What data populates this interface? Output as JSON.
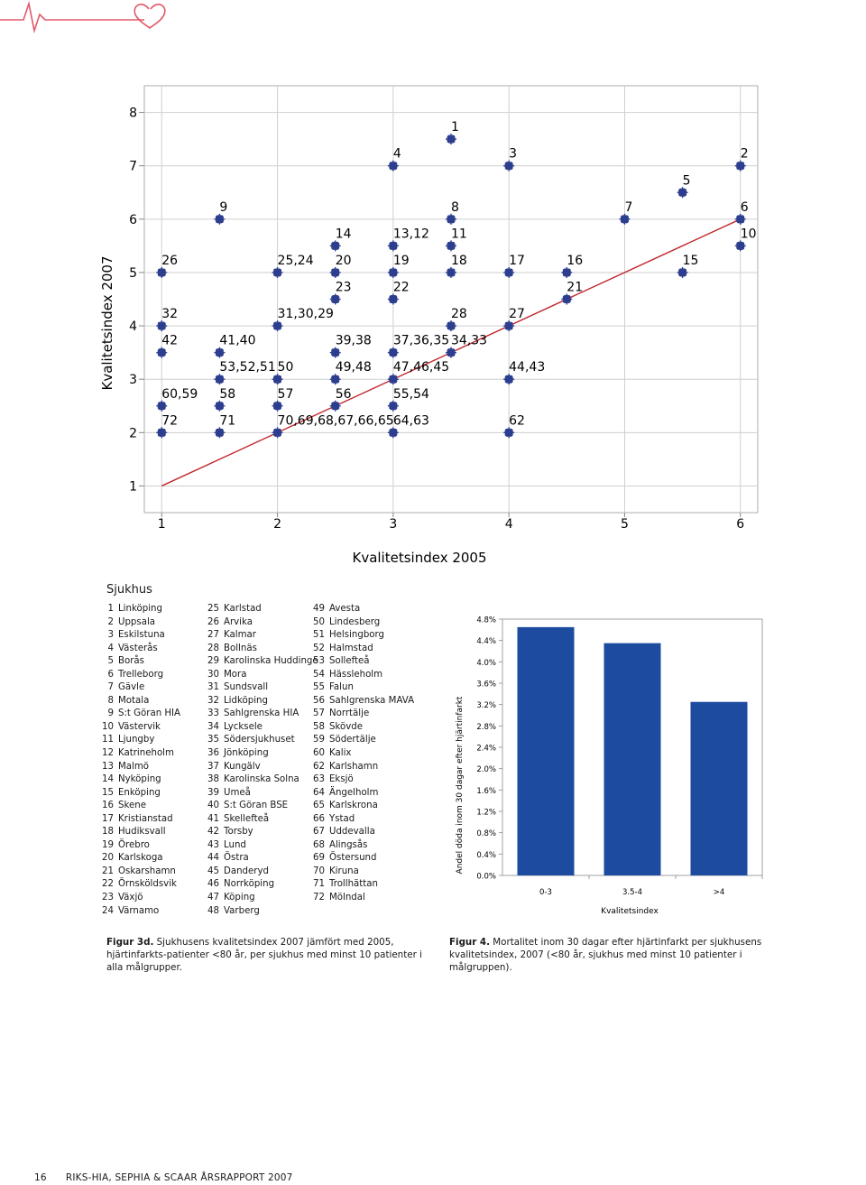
{
  "colors": {
    "accent": "#e05a6a",
    "marker": "#2d3e8f",
    "line": "#c0282d",
    "bar": "#1c4ba0",
    "grid": "#cfcfcf"
  },
  "header_icons": [
    "heartbeat-line-icon",
    "heart-outline-icon"
  ],
  "chart_data": [
    {
      "type": "scatter",
      "xlabel": "Kvalitetsindex 2005",
      "ylabel": "Kvalitetsindex 2007",
      "xlim": [
        1,
        6
      ],
      "ylim": [
        1,
        8
      ],
      "xticks": [
        "1",
        "2",
        "3",
        "4",
        "5",
        "6"
      ],
      "yticks": [
        "1",
        "2",
        "3",
        "4",
        "5",
        "6",
        "7",
        "8"
      ],
      "grid": true,
      "reference_line": {
        "from": [
          1,
          1
        ],
        "to": [
          6,
          6
        ]
      },
      "points": [
        {
          "x": 1.0,
          "y": 5.0,
          "label": "26"
        },
        {
          "x": 1.0,
          "y": 4.0,
          "label": "32"
        },
        {
          "x": 1.0,
          "y": 3.5,
          "label": "42"
        },
        {
          "x": 1.0,
          "y": 2.5,
          "label": "60,59"
        },
        {
          "x": 1.0,
          "y": 2.0,
          "label": "72"
        },
        {
          "x": 1.5,
          "y": 6.0,
          "label": "9"
        },
        {
          "x": 1.5,
          "y": 3.5,
          "label": "41,40"
        },
        {
          "x": 1.5,
          "y": 3.0,
          "label": "53,52,51"
        },
        {
          "x": 1.5,
          "y": 2.5,
          "label": "58"
        },
        {
          "x": 1.5,
          "y": 2.0,
          "label": "71"
        },
        {
          "x": 2.0,
          "y": 5.0,
          "label": "25,24"
        },
        {
          "x": 2.0,
          "y": 4.0,
          "label": "31,30,29"
        },
        {
          "x": 2.0,
          "y": 3.0,
          "label": "50"
        },
        {
          "x": 2.0,
          "y": 2.5,
          "label": "57"
        },
        {
          "x": 2.0,
          "y": 2.0,
          "label": "70,69,68,67,66,65"
        },
        {
          "x": 2.5,
          "y": 5.5,
          "label": "14"
        },
        {
          "x": 2.5,
          "y": 5.0,
          "label": "20"
        },
        {
          "x": 2.5,
          "y": 4.5,
          "label": "23"
        },
        {
          "x": 2.5,
          "y": 3.5,
          "label": "39,38"
        },
        {
          "x": 2.5,
          "y": 3.0,
          "label": "49,48"
        },
        {
          "x": 2.5,
          "y": 2.5,
          "label": "56"
        },
        {
          "x": 3.0,
          "y": 7.0,
          "label": "4"
        },
        {
          "x": 3.0,
          "y": 5.5,
          "label": "13,12"
        },
        {
          "x": 3.0,
          "y": 5.0,
          "label": "19"
        },
        {
          "x": 3.0,
          "y": 4.5,
          "label": "22"
        },
        {
          "x": 3.0,
          "y": 3.5,
          "label": "37,36,35"
        },
        {
          "x": 3.0,
          "y": 3.0,
          "label": "47,46,45"
        },
        {
          "x": 3.0,
          "y": 2.5,
          "label": "55,54"
        },
        {
          "x": 3.0,
          "y": 2.0,
          "label": "64,63"
        },
        {
          "x": 3.5,
          "y": 7.5,
          "label": "1"
        },
        {
          "x": 3.5,
          "y": 6.0,
          "label": "8"
        },
        {
          "x": 3.5,
          "y": 5.5,
          "label": "11"
        },
        {
          "x": 3.5,
          "y": 5.0,
          "label": "18"
        },
        {
          "x": 3.5,
          "y": 4.0,
          "label": "28"
        },
        {
          "x": 3.5,
          "y": 3.5,
          "label": "34,33"
        },
        {
          "x": 4.0,
          "y": 7.0,
          "label": "3"
        },
        {
          "x": 4.0,
          "y": 5.0,
          "label": "17"
        },
        {
          "x": 4.0,
          "y": 4.0,
          "label": "27"
        },
        {
          "x": 4.0,
          "y": 3.0,
          "label": "44,43"
        },
        {
          "x": 4.0,
          "y": 2.0,
          "label": "62"
        },
        {
          "x": 4.5,
          "y": 5.0,
          "label": "16"
        },
        {
          "x": 4.5,
          "y": 4.5,
          "label": "21"
        },
        {
          "x": 5.0,
          "y": 6.0,
          "label": "7"
        },
        {
          "x": 5.5,
          "y": 6.5,
          "label": "5"
        },
        {
          "x": 5.5,
          "y": 5.0,
          "label": "15"
        },
        {
          "x": 6.0,
          "y": 7.0,
          "label": "2"
        },
        {
          "x": 6.0,
          "y": 6.0,
          "label": "6"
        },
        {
          "x": 6.0,
          "y": 5.5,
          "label": "10"
        }
      ]
    },
    {
      "type": "bar",
      "categories": [
        "0-3",
        "3.5-4",
        ">4"
      ],
      "values": [
        4.65,
        4.35,
        3.25
      ],
      "xlabel": "Kvalitetsindex",
      "ylabel": "Andel döda inom 30 dagar efter hjärtinfarkt",
      "ylim": [
        0,
        4.8
      ],
      "yticks": [
        "0.0%",
        "0.4%",
        "0.8%",
        "1.2%",
        "1.6%",
        "2.0%",
        "2.4%",
        "2.8%",
        "3.2%",
        "3.6%",
        "4.0%",
        "4.4%",
        "4.8%"
      ]
    }
  ],
  "sjukhus": {
    "title": "Sjukhus",
    "columns": [
      [
        {
          "num": "1",
          "name": "Linköping"
        },
        {
          "num": "2",
          "name": "Uppsala"
        },
        {
          "num": "3",
          "name": "Eskilstuna"
        },
        {
          "num": "4",
          "name": "Västerås"
        },
        {
          "num": "5",
          "name": "Borås"
        },
        {
          "num": "6",
          "name": "Trelleborg"
        },
        {
          "num": "7",
          "name": "Gävle"
        },
        {
          "num": "8",
          "name": "Motala"
        },
        {
          "num": "9",
          "name": "S:t Göran HIA"
        },
        {
          "num": "10",
          "name": "Västervik"
        },
        {
          "num": "11",
          "name": "Ljungby"
        },
        {
          "num": "12",
          "name": "Katrineholm"
        },
        {
          "num": "13",
          "name": "Malmö"
        },
        {
          "num": "14",
          "name": "Nyköping"
        },
        {
          "num": "15",
          "name": "Enköping"
        },
        {
          "num": "16",
          "name": "Skene"
        },
        {
          "num": "17",
          "name": "Kristianstad"
        },
        {
          "num": "18",
          "name": "Hudiksvall"
        },
        {
          "num": "19",
          "name": "Örebro"
        },
        {
          "num": "20",
          "name": "Karlskoga"
        },
        {
          "num": "21",
          "name": "Oskarshamn"
        },
        {
          "num": "22",
          "name": "Örnsköldsvik"
        },
        {
          "num": "23",
          "name": "Växjö"
        },
        {
          "num": "24",
          "name": "Värnamo"
        }
      ],
      [
        {
          "num": "25",
          "name": "Karlstad"
        },
        {
          "num": "26",
          "name": "Arvika"
        },
        {
          "num": "27",
          "name": "Kalmar"
        },
        {
          "num": "28",
          "name": "Bollnäs"
        },
        {
          "num": "29",
          "name": "Karolinska Huddinge"
        },
        {
          "num": "30",
          "name": "Mora"
        },
        {
          "num": "31",
          "name": "Sundsvall"
        },
        {
          "num": "32",
          "name": "Lidköping"
        },
        {
          "num": "33",
          "name": "Sahlgrenska HIA"
        },
        {
          "num": "34",
          "name": "Lycksele"
        },
        {
          "num": "35",
          "name": "Södersjukhuset"
        },
        {
          "num": "36",
          "name": "Jönköping"
        },
        {
          "num": "37",
          "name": "Kungälv"
        },
        {
          "num": "38",
          "name": "Karolinska Solna"
        },
        {
          "num": "39",
          "name": "Umeå"
        },
        {
          "num": "40",
          "name": "S:t Göran BSE"
        },
        {
          "num": "41",
          "name": "Skellefteå"
        },
        {
          "num": "42",
          "name": "Torsby"
        },
        {
          "num": "43",
          "name": "Lund"
        },
        {
          "num": "44",
          "name": "Östra"
        },
        {
          "num": "45",
          "name": "Danderyd"
        },
        {
          "num": "46",
          "name": "Norrköping"
        },
        {
          "num": "47",
          "name": "Köping"
        },
        {
          "num": "48",
          "name": "Varberg"
        }
      ],
      [
        {
          "num": "49",
          "name": "Avesta"
        },
        {
          "num": "50",
          "name": "Lindesberg"
        },
        {
          "num": "51",
          "name": "Helsingborg"
        },
        {
          "num": "52",
          "name": "Halmstad"
        },
        {
          "num": "53",
          "name": "Sollefteå"
        },
        {
          "num": "54",
          "name": "Hässleholm"
        },
        {
          "num": "55",
          "name": "Falun"
        },
        {
          "num": "56",
          "name": "Sahlgrenska MAVA"
        },
        {
          "num": "57",
          "name": "Norrtälje"
        },
        {
          "num": "58",
          "name": "Skövde"
        },
        {
          "num": "59",
          "name": "Södertälje"
        },
        {
          "num": "60",
          "name": "Kalix"
        },
        {
          "num": "62",
          "name": "Karlshamn"
        },
        {
          "num": "63",
          "name": "Eksjö"
        },
        {
          "num": "64",
          "name": "Ängelholm"
        },
        {
          "num": "65",
          "name": "Karlskrona"
        },
        {
          "num": "66",
          "name": "Ystad"
        },
        {
          "num": "67",
          "name": "Uddevalla"
        },
        {
          "num": "68",
          "name": "Alingsås"
        },
        {
          "num": "69",
          "name": "Östersund"
        },
        {
          "num": "70",
          "name": "Kiruna"
        },
        {
          "num": "71",
          "name": "Trollhättan"
        },
        {
          "num": "72",
          "name": "Mölndal"
        }
      ]
    ]
  },
  "captions": {
    "fig3d_label": "Figur 3d.",
    "fig3d_text": " Sjukhusens kvalitetsindex 2007 jämfört med 2005, hjärtinfarkts-patienter <80 år, per sjukhus med minst 10 patienter i alla målgrupper.",
    "fig4_label": "Figur 4.",
    "fig4_text": " Mortalitet inom 30 dagar efter hjärtinfarkt per sjukhusens kvalitetsindex, 2007 (<80 år, sjukhus med minst 10 patienter i målgruppen)."
  },
  "footer": {
    "page_number": "16",
    "report_title": "RIKS-HIA, SEPHIA & SCAAR ÅRSRAPPORT 2007"
  }
}
